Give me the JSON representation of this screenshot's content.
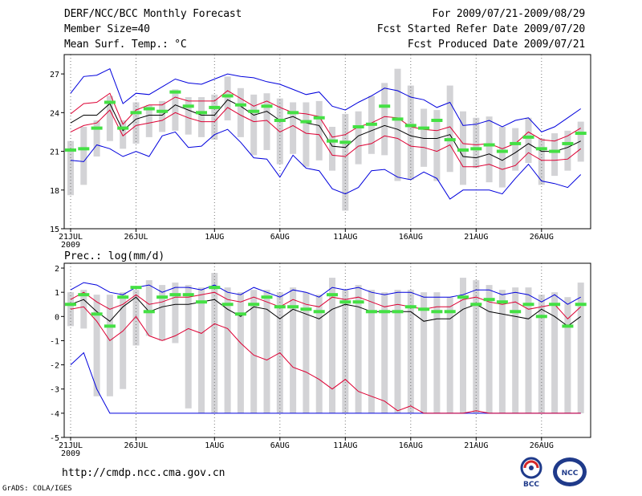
{
  "header": {
    "title": "DERF/NCC/BCC Monthly Forecast",
    "member_size": "Member Size=40",
    "variable": "Mean Surf. Temp.: °C",
    "forecast_period": "For 2009/07/21-2009/08/29",
    "started_refer": "Fcst Started Refer Date 2009/07/20",
    "produced": "Fcst Produced Date 2009/07/21"
  },
  "footer": {
    "url": "http://cmdp.ncc.cma.gov.cn",
    "credit": "GrADS: COLA/IGES",
    "logo1": "BCC",
    "logo2": "NCC"
  },
  "colors": {
    "box": "#d3d3d6",
    "envelope": "#0000dd",
    "spread": "#dd0033",
    "mean": "#000000",
    "median": "#44e044",
    "frame": "#000000",
    "grid": "#777777"
  },
  "chart_data": [
    {
      "type": "line",
      "title": "Mean Surf. Temp.: °C",
      "x_ticks": [
        "21JUL",
        "26JUL",
        "1AUG",
        "6AUG",
        "11AUG",
        "16AUG",
        "21AUG",
        "26AUG"
      ],
      "x_tick_days": [
        1,
        6,
        12,
        17,
        22,
        27,
        32,
        37
      ],
      "year_label": "2009",
      "ylim": [
        15,
        28.5
      ],
      "y_ticks": [
        15,
        18,
        21,
        24,
        27
      ],
      "days": [
        1,
        2,
        3,
        4,
        5,
        6,
        7,
        8,
        9,
        10,
        11,
        12,
        13,
        14,
        15,
        16,
        17,
        18,
        19,
        20,
        21,
        22,
        23,
        24,
        25,
        26,
        27,
        28,
        29,
        30,
        31,
        32,
        33,
        34,
        35,
        36,
        37,
        38,
        39,
        40
      ],
      "series": [
        {
          "name": "max",
          "values": [
            25.5,
            26.8,
            26.9,
            27.4,
            24.7,
            25.5,
            25.4,
            26.0,
            26.6,
            26.3,
            26.2,
            26.6,
            27.0,
            26.8,
            26.7,
            26.4,
            26.2,
            25.8,
            25.4,
            25.6,
            24.5,
            24.2,
            24.8,
            25.3,
            25.9,
            25.7,
            25.2,
            25.0,
            24.4,
            24.8,
            23.0,
            23.1,
            23.4,
            22.9,
            23.4,
            23.6,
            22.5,
            22.9,
            23.6,
            24.3
          ]
        },
        {
          "name": "spread_high",
          "values": [
            23.9,
            24.7,
            24.8,
            25.5,
            23.1,
            24.2,
            24.6,
            24.6,
            25.2,
            24.9,
            24.9,
            24.9,
            25.7,
            25.1,
            24.5,
            24.9,
            24.4,
            24.0,
            23.9,
            23.7,
            22.1,
            22.3,
            22.9,
            23.2,
            23.7,
            23.6,
            22.9,
            22.7,
            22.6,
            22.9,
            21.6,
            21.5,
            21.6,
            21.2,
            21.6,
            22.5,
            21.9,
            21.8,
            22.2,
            22.8
          ]
        },
        {
          "name": "mean",
          "values": [
            23.2,
            23.8,
            23.8,
            24.7,
            22.6,
            23.5,
            23.8,
            23.8,
            24.6,
            24.2,
            23.8,
            23.8,
            25.0,
            24.5,
            23.8,
            24.1,
            23.4,
            23.7,
            23.2,
            23.0,
            21.4,
            21.3,
            22.2,
            22.6,
            23.0,
            22.7,
            22.2,
            22.0,
            22.0,
            22.3,
            20.6,
            20.5,
            20.8,
            20.3,
            20.9,
            21.6,
            21.0,
            21.0,
            21.3,
            21.8
          ]
        },
        {
          "name": "spread_low",
          "values": [
            22.5,
            23.0,
            23.2,
            24.2,
            22.2,
            23.0,
            23.2,
            23.4,
            24.0,
            23.6,
            23.3,
            23.3,
            24.4,
            23.8,
            23.3,
            23.4,
            22.5,
            23.0,
            22.4,
            22.3,
            20.7,
            20.6,
            21.4,
            21.6,
            22.2,
            22.0,
            21.4,
            21.3,
            21.0,
            21.5,
            19.8,
            19.8,
            20.0,
            19.6,
            19.9,
            20.9,
            20.3,
            20.3,
            20.4,
            21.2
          ]
        },
        {
          "name": "min",
          "values": [
            20.3,
            20.2,
            21.5,
            21.2,
            20.6,
            21.0,
            20.6,
            22.2,
            22.5,
            21.3,
            21.4,
            22.3,
            22.7,
            21.7,
            20.5,
            20.4,
            19.0,
            20.7,
            19.7,
            19.5,
            18.1,
            17.7,
            18.2,
            19.5,
            19.6,
            19.0,
            18.8,
            19.4,
            18.9,
            17.3,
            18.0,
            18.0,
            18.0,
            17.7,
            18.9,
            20.0,
            18.7,
            18.5,
            18.2,
            19.2
          ]
        },
        {
          "name": "median",
          "values": [
            21.1,
            21.2,
            22.8,
            24.8,
            22.8,
            24.0,
            24.3,
            24.1,
            25.6,
            24.5,
            24.0,
            24.4,
            25.3,
            24.6,
            24.1,
            24.5,
            23.4,
            24.0,
            23.3,
            23.6,
            21.8,
            21.7,
            22.9,
            23.1,
            24.5,
            23.5,
            23.0,
            22.8,
            23.4,
            21.9,
            21.1,
            21.2,
            21.5,
            21.0,
            21.6,
            22.1,
            21.2,
            21.0,
            21.6,
            22.4
          ]
        },
        {
          "name": "box_top",
          "values": [
            21.8,
            22.9,
            23.4,
            25.3,
            23.4,
            24.8,
            24.6,
            24.9,
            25.8,
            25.2,
            25.2,
            25.4,
            26.8,
            25.9,
            25.4,
            25.5,
            25.1,
            24.8,
            24.8,
            24.9,
            22.9,
            23.9,
            24.1,
            25.3,
            26.3,
            27.4,
            26.1,
            24.3,
            24.2,
            26.1,
            24.1,
            23.6,
            23.7,
            22.9,
            22.8,
            23.6,
            22.0,
            22.4,
            22.6,
            23.3
          ]
        },
        {
          "name": "box_bottom",
          "values": [
            17.6,
            18.4,
            20.6,
            21.8,
            21.2,
            21.6,
            22.1,
            22.5,
            22.6,
            22.3,
            22.1,
            21.9,
            23.4,
            22.1,
            20.7,
            21.1,
            20.0,
            20.8,
            19.8,
            20.3,
            19.5,
            16.4,
            20.0,
            20.8,
            20.7,
            18.7,
            18.8,
            19.8,
            18.7,
            19.4,
            18.4,
            19.7,
            18.6,
            18.2,
            19.5,
            20.1,
            18.4,
            19.1,
            19.5,
            20.2
          ]
        }
      ]
    },
    {
      "type": "line",
      "title": "Prec.: log(mm/d)",
      "x_ticks": [
        "21JUL",
        "26JUL",
        "1AUG",
        "6AUG",
        "11AUG",
        "16AUG",
        "21AUG",
        "26AUG"
      ],
      "x_tick_days": [
        1,
        6,
        12,
        17,
        22,
        27,
        32,
        37
      ],
      "year_label": "2009",
      "ylim": [
        -5,
        2.2
      ],
      "y_ticks": [
        -5,
        -4,
        -3,
        -2,
        -1,
        0,
        1,
        2
      ],
      "days": [
        1,
        2,
        3,
        4,
        5,
        6,
        7,
        8,
        9,
        10,
        11,
        12,
        13,
        14,
        15,
        16,
        17,
        18,
        19,
        20,
        21,
        22,
        23,
        24,
        25,
        26,
        27,
        28,
        29,
        30,
        31,
        32,
        33,
        34,
        35,
        36,
        37,
        38,
        39,
        40
      ],
      "series": [
        {
          "name": "max",
          "values": [
            1.1,
            1.4,
            1.3,
            1.0,
            0.9,
            1.2,
            1.3,
            1.0,
            1.2,
            1.2,
            1.1,
            1.3,
            1.0,
            0.9,
            1.2,
            1.0,
            0.8,
            1.1,
            1.0,
            0.8,
            1.2,
            1.1,
            1.2,
            1.0,
            0.9,
            1.0,
            1.0,
            0.8,
            0.8,
            0.8,
            0.9,
            1.1,
            1.1,
            0.9,
            1.0,
            0.9,
            0.6,
            0.9,
            0.5,
            0.8
          ]
        },
        {
          "name": "spread_high",
          "values": [
            0.7,
            1.0,
            0.6,
            0.3,
            0.5,
            0.9,
            0.5,
            0.6,
            0.8,
            0.8,
            0.9,
            1.0,
            0.7,
            0.6,
            0.8,
            0.6,
            0.4,
            0.7,
            0.5,
            0.4,
            0.8,
            0.7,
            0.8,
            0.6,
            0.4,
            0.5,
            0.4,
            0.3,
            0.4,
            0.4,
            0.7,
            0.8,
            0.6,
            0.5,
            0.6,
            0.3,
            0.4,
            0.5,
            -0.1,
            0.4
          ]
        },
        {
          "name": "mean",
          "values": [
            0.5,
            0.7,
            0.2,
            -0.2,
            0.4,
            0.8,
            0.2,
            0.4,
            0.5,
            0.5,
            0.6,
            0.7,
            0.3,
            0.0,
            0.4,
            0.3,
            -0.1,
            0.3,
            0.1,
            -0.1,
            0.3,
            0.5,
            0.4,
            0.2,
            0.2,
            0.2,
            0.2,
            -0.2,
            -0.1,
            -0.1,
            0.3,
            0.5,
            0.2,
            0.1,
            0.0,
            -0.1,
            0.3,
            0.0,
            -0.4,
            0.0
          ]
        },
        {
          "name": "spread_low",
          "values": [
            0.3,
            0.4,
            -0.2,
            -1.0,
            -0.6,
            0.0,
            -0.8,
            -1.0,
            -0.8,
            -0.5,
            -0.7,
            -0.3,
            -0.5,
            -1.1,
            -1.6,
            -1.8,
            -1.5,
            -2.1,
            -2.3,
            -2.6,
            -3.0,
            -2.6,
            -3.1,
            -3.3,
            -3.5,
            -3.9,
            -3.7,
            -4.0,
            -4.0,
            -4.0,
            -4.0,
            -3.9,
            -4.0,
            -4.0,
            -4.0,
            -4.0,
            -4.0,
            -4.0,
            -4.0,
            -4.0
          ]
        },
        {
          "name": "min",
          "values": [
            -2.0,
            -1.5,
            -3.0,
            -4.0,
            -4.0,
            -4.0,
            -4.0,
            -4.0,
            -4.0,
            -4.0,
            -4.0,
            -4.0,
            -4.0,
            -4.0,
            -4.0,
            -4.0,
            -4.0,
            -4.0,
            -4.0,
            -4.0,
            -4.0,
            -4.0,
            -4.0,
            -4.0,
            -4.0,
            -4.0,
            -4.0,
            -4.0,
            -4.0,
            -4.0,
            -4.0,
            -4.0,
            -4.0,
            -4.0,
            -4.0,
            -4.0,
            -4.0,
            -4.0,
            -4.0,
            -4.0
          ]
        },
        {
          "name": "median",
          "values": [
            0.5,
            0.9,
            0.1,
            -0.4,
            0.8,
            1.2,
            0.2,
            0.8,
            0.9,
            0.9,
            0.6,
            1.2,
            0.5,
            0.1,
            0.5,
            0.8,
            0.4,
            0.4,
            0.3,
            0.2,
            0.9,
            0.6,
            0.6,
            0.2,
            0.2,
            0.2,
            0.4,
            0.3,
            0.2,
            0.2,
            0.8,
            0.5,
            0.7,
            0.6,
            0.2,
            0.5,
            0.0,
            0.5,
            -0.4,
            0.5
          ]
        },
        {
          "name": "box_top",
          "values": [
            1.0,
            1.1,
            0.9,
            0.9,
            1.0,
            1.1,
            1.5,
            1.3,
            1.4,
            1.3,
            1.2,
            1.8,
            1.2,
            1.0,
            1.1,
            1.1,
            1.0,
            1.2,
            1.0,
            0.9,
            1.6,
            1.1,
            1.3,
            1.1,
            1.0,
            1.1,
            1.1,
            1.0,
            1.0,
            0.8,
            1.6,
            1.5,
            1.3,
            1.1,
            1.2,
            1.2,
            0.9,
            1.0,
            0.8,
            1.4
          ]
        },
        {
          "name": "box_bottom",
          "values": [
            -0.4,
            -0.5,
            -3.3,
            -3.3,
            -3.0,
            -1.2,
            -0.8,
            -1.0,
            -1.1,
            -3.8,
            -4.0,
            -4.0,
            -4.0,
            -4.0,
            -4.0,
            -4.0,
            -4.0,
            -4.0,
            -4.0,
            -4.0,
            -4.0,
            -4.0,
            -4.0,
            -4.0,
            -4.0,
            -4.0,
            -4.0,
            -4.0,
            -4.0,
            -4.0,
            -4.0,
            -4.0,
            -4.0,
            -4.0,
            -4.0,
            -4.0,
            -4.0,
            -4.0,
            -4.0,
            -4.0
          ]
        }
      ]
    }
  ]
}
